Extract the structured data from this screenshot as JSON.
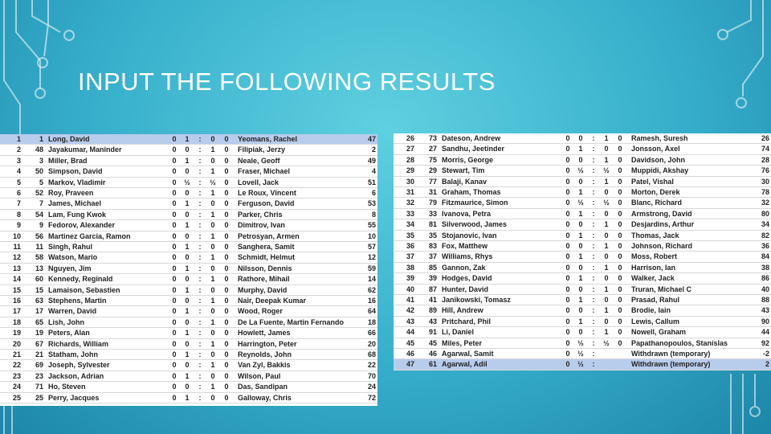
{
  "title": "INPUT THE FOLLOWING RESULTS",
  "tables": [
    {
      "rows": [
        [
          "1",
          "1",
          "Long, David",
          "0",
          "1",
          ":",
          "0",
          "0",
          "Yeomans, Rachel",
          "47"
        ],
        [
          "2",
          "48",
          "Jayakumar, Maninder",
          "0",
          "0",
          ":",
          "1",
          "0",
          "Filipiak, Jerzy",
          "2"
        ],
        [
          "3",
          "3",
          "Miller, Brad",
          "0",
          "1",
          ":",
          "0",
          "0",
          "Neale, Geoff",
          "49"
        ],
        [
          "4",
          "50",
          "Simpson, David",
          "0",
          "0",
          ":",
          "1",
          "0",
          "Fraser, Michael",
          "4"
        ],
        [
          "5",
          "5",
          "Markov, Vladimir",
          "0",
          "½",
          ":",
          "½",
          "0",
          "Lovell, Jack",
          "51"
        ],
        [
          "6",
          "52",
          "Roy, Praveen",
          "0",
          "0",
          ":",
          "1",
          "0",
          "Le Roux, Vincent",
          "6"
        ],
        [
          "7",
          "7",
          "James, Michael",
          "0",
          "1",
          ":",
          "0",
          "0",
          "Ferguson, David",
          "53"
        ],
        [
          "8",
          "54",
          "Lam, Fung Kwok",
          "0",
          "0",
          ":",
          "1",
          "0",
          "Parker, Chris",
          "8"
        ],
        [
          "9",
          "9",
          "Fedorov, Alexander",
          "0",
          "1",
          ":",
          "0",
          "0",
          "Dimitrov, Ivan",
          "55"
        ],
        [
          "10",
          "56",
          "Martinez Garcia, Ramon",
          "0",
          "0",
          ":",
          "1",
          "0",
          "Petrosyan, Armen",
          "10"
        ],
        [
          "11",
          "11",
          "Singh, Rahul",
          "0",
          "1",
          ":",
          "0",
          "0",
          "Sanghera, Samit",
          "57"
        ],
        [
          "12",
          "58",
          "Watson, Mario",
          "0",
          "0",
          ":",
          "1",
          "0",
          "Schmidt, Helmut",
          "12"
        ],
        [
          "13",
          "13",
          "Nguyen, Jim",
          "0",
          "1",
          ":",
          "0",
          "0",
          "Nilsson, Dennis",
          "59"
        ],
        [
          "14",
          "60",
          "Kennedy, Reginald",
          "0",
          "0",
          ":",
          "1",
          "0",
          "Rathore, Mihail",
          "14"
        ],
        [
          "15",
          "15",
          "Lamaison, Sebastien",
          "0",
          "1",
          ":",
          "0",
          "0",
          "Murphy, David",
          "62"
        ],
        [
          "16",
          "63",
          "Stephens, Martin",
          "0",
          "0",
          ":",
          "1",
          "0",
          "Nair, Deepak Kumar",
          "16"
        ],
        [
          "17",
          "17",
          "Warren, David",
          "0",
          "1",
          ":",
          "0",
          "0",
          "Wood, Roger",
          "64"
        ],
        [
          "18",
          "65",
          "Lish, John",
          "0",
          "0",
          ":",
          "1",
          "0",
          "De La Fuente, Martin Fernando",
          "18"
        ],
        [
          "19",
          "19",
          "Peters, Alan",
          "0",
          "1",
          ":",
          "0",
          "0",
          "Howlett, James",
          "66"
        ],
        [
          "20",
          "67",
          "Richards, William",
          "0",
          "0",
          ":",
          "1",
          "0",
          "Harrington, Peter",
          "20"
        ],
        [
          "21",
          "21",
          "Statham, John",
          "0",
          "1",
          ":",
          "0",
          "0",
          "Reynolds, John",
          "68"
        ],
        [
          "22",
          "69",
          "Joseph, Sylvester",
          "0",
          "0",
          ":",
          "1",
          "0",
          "Van Zyl, Bakkis",
          "22"
        ],
        [
          "23",
          "23",
          "Jackson, Adrian",
          "0",
          "1",
          ":",
          "0",
          "0",
          "Wilson, Paul",
          "70"
        ],
        [
          "24",
          "71",
          "Ho, Steven",
          "0",
          "0",
          ":",
          "1",
          "0",
          "Das, Sandipan",
          "24"
        ],
        [
          "25",
          "25",
          "Perry, Jacques",
          "0",
          "1",
          ":",
          "0",
          "0",
          "Galloway, Chris",
          "72"
        ]
      ]
    },
    {
      "rows": [
        [
          "26",
          "73",
          "Dateson, Andrew",
          "0",
          "0",
          ":",
          "1",
          "0",
          "Ramesh, Suresh",
          "26"
        ],
        [
          "27",
          "27",
          "Sandhu, Jeetinder",
          "0",
          "1",
          ":",
          "0",
          "0",
          "Jonsson, Axel",
          "74"
        ],
        [
          "28",
          "75",
          "Morris, George",
          "0",
          "0",
          ":",
          "1",
          "0",
          "Davidson, John",
          "28"
        ],
        [
          "29",
          "29",
          "Stewart, Tim",
          "0",
          "½",
          ":",
          "½",
          "0",
          "Muppidi, Akshay",
          "76"
        ],
        [
          "30",
          "77",
          "Balaji, Kanav",
          "0",
          "0",
          ":",
          "1",
          "0",
          "Patel, Vishal",
          "30"
        ],
        [
          "31",
          "31",
          "Graham, Thomas",
          "0",
          "1",
          ":",
          "0",
          "0",
          "Morton, Derek",
          "78"
        ],
        [
          "32",
          "79",
          "Fitzmaurice, Simon",
          "0",
          "½",
          ":",
          "½",
          "0",
          "Blanc, Richard",
          "32"
        ],
        [
          "33",
          "33",
          "Ivanova, Petra",
          "0",
          "1",
          ":",
          "0",
          "0",
          "Armstrong, David",
          "80"
        ],
        [
          "34",
          "81",
          "Silverwood, James",
          "0",
          "0",
          ":",
          "1",
          "0",
          "Desjardins, Arthur",
          "34"
        ],
        [
          "35",
          "35",
          "Stojanovic, Ivan",
          "0",
          "1",
          ":",
          "0",
          "0",
          "Thomas, Jack",
          "82"
        ],
        [
          "36",
          "83",
          "Fox, Matthew",
          "0",
          "0",
          ":",
          "1",
          "0",
          "Johnson, Richard",
          "36"
        ],
        [
          "37",
          "37",
          "Williams, Rhys",
          "0",
          "1",
          ":",
          "0",
          "0",
          "Moss, Robert",
          "84"
        ],
        [
          "38",
          "85",
          "Gannon, Zak",
          "0",
          "0",
          ":",
          "1",
          "0",
          "Harrison, Ian",
          "38"
        ],
        [
          "39",
          "39",
          "Hodges, David",
          "0",
          "1",
          ":",
          "0",
          "0",
          "Walker, Jack",
          "86"
        ],
        [
          "40",
          "87",
          "Hunter, David",
          "0",
          "0",
          ":",
          "1",
          "0",
          "Truran, Michael C",
          "40"
        ],
        [
          "41",
          "41",
          "Janikowski, Tomasz",
          "0",
          "1",
          ":",
          "0",
          "0",
          "Prasad, Rahul",
          "88"
        ],
        [
          "42",
          "89",
          "Hill, Andrew",
          "0",
          "0",
          ":",
          "1",
          "0",
          "Brodie, Iain",
          "43"
        ],
        [
          "43",
          "43",
          "Pritchard, Phil",
          "0",
          "1",
          ":",
          "0",
          "0",
          "Lewis, Callum",
          "90"
        ],
        [
          "44",
          "91",
          "Li, Daniel",
          "0",
          "0",
          ":",
          "1",
          "0",
          "Nowell, Graham",
          "44"
        ],
        [
          "45",
          "45",
          "Miles, Peter",
          "0",
          "½",
          ":",
          "½",
          "0",
          "Papathanopoulos, Stanislas",
          "92"
        ],
        [
          "46",
          "46",
          "Agarwal, Samit",
          "0",
          "½",
          ":",
          null,
          null,
          "Withdrawn (temporary)",
          "-2"
        ],
        [
          "47",
          "61",
          "Agarwal, Adil",
          "0",
          "½",
          ":",
          null,
          null,
          "Withdrawn (temporary)",
          "2"
        ]
      ]
    }
  ]
}
